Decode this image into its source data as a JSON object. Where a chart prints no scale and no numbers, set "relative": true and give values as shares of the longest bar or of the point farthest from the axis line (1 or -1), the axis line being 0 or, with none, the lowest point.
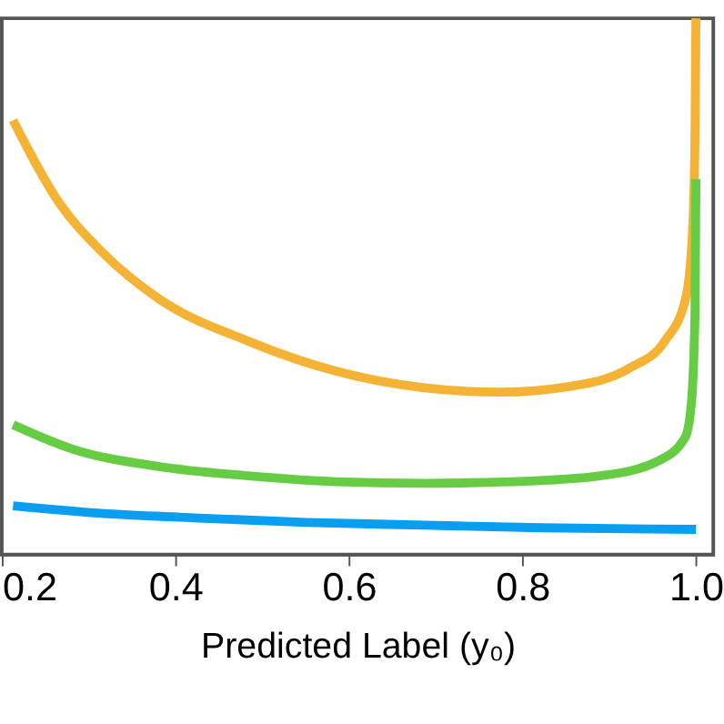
{
  "chart_data": {
    "type": "line",
    "relative": true,
    "xlabel": "Predicted Label (y₀)",
    "xlim": [
      0.2,
      1.02
    ],
    "xticks": [
      0.2,
      0.4,
      0.6,
      0.8,
      {
        "value": 1,
        "label": "1.0"
      }
    ],
    "legend": false,
    "marker": "none",
    "line_style": "solid",
    "series": [
      {
        "color": "#f5b335",
        "x": [
          0.213,
          0.267,
          0.315,
          0.382,
          0.484,
          0.585,
          0.687,
          0.775,
          0.856,
          0.924,
          0.964,
          0.988,
          0.996,
          0.999,
          1.0
        ],
        "values": [
          0.81,
          0.654,
          0.565,
          0.476,
          0.398,
          0.342,
          0.311,
          0.303,
          0.314,
          0.348,
          0.398,
          0.476,
          0.599,
          0.788,
          1.0
        ]
      },
      {
        "color": "#66cc44",
        "x": [
          0.213,
          0.281,
          0.382,
          0.484,
          0.585,
          0.687,
          0.788,
          0.89,
          0.957,
          0.988,
          0.995,
          0.999,
          1.0
        ],
        "values": [
          0.242,
          0.197,
          0.164,
          0.147,
          0.136,
          0.133,
          0.136,
          0.147,
          0.175,
          0.22,
          0.287,
          0.455,
          0.7
        ]
      },
      {
        "color": "#0a9ef0",
        "x": [
          0.213,
          0.315,
          0.416,
          0.551,
          0.687,
          0.822,
          1.0
        ],
        "values": [
          0.091,
          0.077,
          0.069,
          0.06,
          0.055,
          0.05,
          0.047
        ]
      }
    ]
  }
}
